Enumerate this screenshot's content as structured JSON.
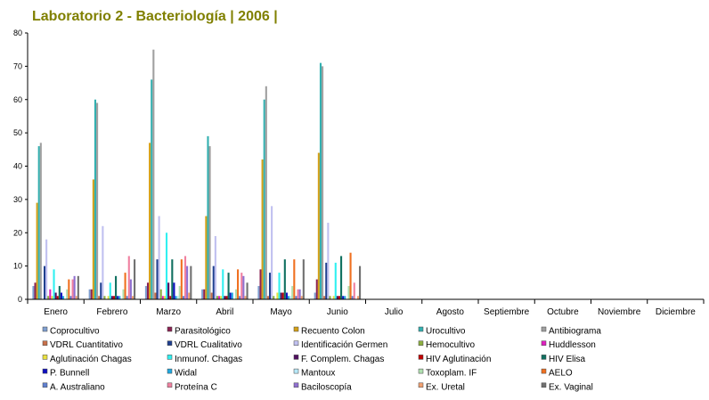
{
  "chart_data": {
    "type": "bar",
    "title": "Laboratorio 2 - Bacteriología | 2006 |",
    "xlabel": "",
    "ylabel": "",
    "ylim": [
      0,
      80
    ],
    "yticks": [
      0,
      10,
      20,
      30,
      40,
      50,
      60,
      70,
      80
    ],
    "grid": false,
    "legend_position": "bottom",
    "categories": [
      "Enero",
      "Febrero",
      "Marzo",
      "Abril",
      "Mayo",
      "Junio",
      "Julio",
      "Agosto",
      "Septiembre",
      "Octubre",
      "Noviembre",
      "Diciembre"
    ],
    "series": [
      {
        "name": "Coprocultivo",
        "color": "#7f9fd0",
        "values": [
          4,
          3,
          4,
          3,
          4,
          2,
          0,
          0,
          0,
          0,
          0,
          0
        ]
      },
      {
        "name": "Parasitológico",
        "color": "#8b2252",
        "values": [
          5,
          3,
          5,
          3,
          9,
          6,
          0,
          0,
          0,
          0,
          0,
          0
        ]
      },
      {
        "name": "Recuento Colon",
        "color": "#d4a017",
        "values": [
          29,
          36,
          47,
          25,
          42,
          44,
          0,
          0,
          0,
          0,
          0,
          0
        ]
      },
      {
        "name": "Urocultivo",
        "color": "#33b0b0",
        "values": [
          46,
          60,
          66,
          49,
          60,
          71,
          0,
          0,
          0,
          0,
          0,
          0
        ]
      },
      {
        "name": "Antibiograma",
        "color": "#a0a0a0",
        "values": [
          47,
          59,
          75,
          46,
          64,
          70,
          0,
          0,
          0,
          0,
          0,
          0
        ]
      },
      {
        "name": "VDRL Cuantitativo",
        "color": "#c8704a",
        "values": [
          0,
          1,
          2,
          2,
          1,
          1,
          0,
          0,
          0,
          0,
          0,
          0
        ]
      },
      {
        "name": "VDRL Cualitativo",
        "color": "#1f3f8f",
        "values": [
          10,
          5,
          12,
          10,
          8,
          11,
          0,
          0,
          0,
          0,
          0,
          0
        ]
      },
      {
        "name": "Identificación Germen",
        "color": "#c0c0f0",
        "values": [
          18,
          22,
          25,
          19,
          28,
          23,
          0,
          0,
          0,
          0,
          0,
          0
        ]
      },
      {
        "name": "Hemocultivo",
        "color": "#8db040",
        "values": [
          1,
          1,
          3,
          1,
          1,
          1,
          0,
          0,
          0,
          0,
          0,
          0
        ]
      },
      {
        "name": "Huddlesson",
        "color": "#e020c0",
        "values": [
          3,
          0,
          1,
          1,
          0,
          0,
          0,
          0,
          0,
          0,
          0,
          0
        ]
      },
      {
        "name": "Aglutinación Chagas",
        "color": "#e8e040",
        "values": [
          1,
          1,
          1,
          1,
          2,
          1,
          0,
          0,
          0,
          0,
          0,
          0
        ]
      },
      {
        "name": "Inmunof. Chagas",
        "color": "#30f0f0",
        "values": [
          9,
          5,
          20,
          9,
          8,
          11,
          0,
          0,
          0,
          0,
          0,
          0
        ]
      },
      {
        "name": "F. Complem. Chagas",
        "color": "#501060",
        "values": [
          2,
          1,
          5,
          1,
          2,
          1,
          0,
          0,
          0,
          0,
          0,
          0
        ]
      },
      {
        "name": "HIV Aglutinación",
        "color": "#c00000",
        "values": [
          1,
          1,
          1,
          1,
          2,
          1,
          0,
          0,
          0,
          0,
          0,
          0
        ]
      },
      {
        "name": "HIV Elisa",
        "color": "#107060",
        "values": [
          4,
          7,
          12,
          8,
          12,
          13,
          0,
          0,
          0,
          0,
          0,
          0
        ]
      },
      {
        "name": "P. Bunnell",
        "color": "#1010c0",
        "values": [
          2,
          1,
          5,
          2,
          2,
          1,
          0,
          0,
          0,
          0,
          0,
          0
        ]
      },
      {
        "name": "Widal",
        "color": "#20a8e0",
        "values": [
          1,
          1,
          1,
          2,
          1,
          1,
          0,
          0,
          0,
          0,
          0,
          0
        ]
      },
      {
        "name": "Mantoux",
        "color": "#b8e8f8",
        "values": [
          0,
          0,
          1,
          0,
          1,
          0,
          0,
          0,
          0,
          0,
          0,
          0
        ]
      },
      {
        "name": "Toxoplam. IF",
        "color": "#b0e0b0",
        "values": [
          3,
          3,
          4,
          3,
          4,
          4,
          0,
          0,
          0,
          0,
          0,
          0
        ]
      },
      {
        "name": "AELO",
        "color": "#f07020",
        "values": [
          6,
          8,
          12,
          9,
          12,
          14,
          0,
          0,
          0,
          0,
          0,
          0
        ]
      },
      {
        "name": "A. Australiano",
        "color": "#6080d0",
        "values": [
          1,
          1,
          1,
          1,
          1,
          1,
          0,
          0,
          0,
          0,
          0,
          0
        ]
      },
      {
        "name": "Proteína C",
        "color": "#f080a0",
        "values": [
          6,
          13,
          13,
          8,
          3,
          5,
          0,
          0,
          0,
          0,
          0,
          0
        ]
      },
      {
        "name": "Baciloscopía",
        "color": "#9070d0",
        "values": [
          7,
          6,
          10,
          7,
          3,
          0,
          0,
          0,
          0,
          0,
          0,
          0
        ]
      },
      {
        "name": "Ex. Uretal",
        "color": "#f0a070",
        "values": [
          1,
          1,
          2,
          1,
          1,
          1,
          0,
          0,
          0,
          0,
          0,
          0
        ]
      },
      {
        "name": "Ex. Vaginal",
        "color": "#707070",
        "values": [
          7,
          12,
          10,
          5,
          12,
          10,
          0,
          0,
          0,
          0,
          0,
          0
        ]
      }
    ]
  }
}
